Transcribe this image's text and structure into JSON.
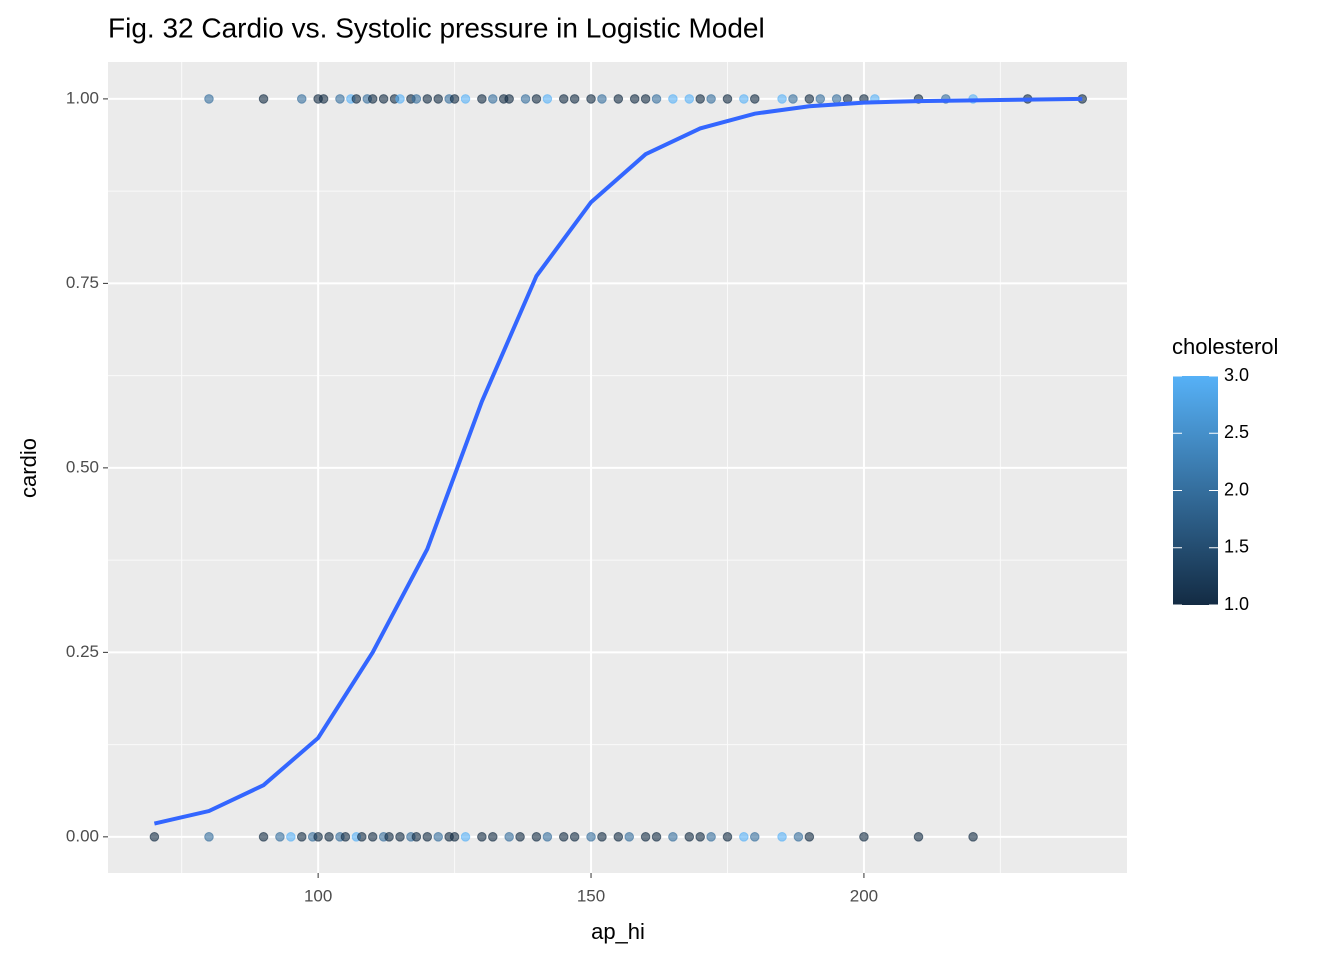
{
  "chart_data": {
    "type": "scatter",
    "title": "Fig. 32 Cardio vs. Systolic pressure in Logistic Model",
    "x_label": "ap_hi",
    "y_label": "cardio",
    "xlim": [
      61.5,
      248.2
    ],
    "ylim": [
      -0.049,
      1.05
    ],
    "xticks": [
      100,
      150,
      200
    ],
    "yticks": [
      {
        "value": 0,
        "label": "0.00"
      },
      {
        "value": 0.25,
        "label": "0.25"
      },
      {
        "value": 0.5,
        "label": "0.50"
      },
      {
        "value": 0.75,
        "label": "0.75"
      },
      {
        "value": 1,
        "label": "1.00"
      }
    ],
    "grid": true,
    "minor_grid": true,
    "x": [
      80,
      90,
      97,
      100,
      101,
      104,
      106,
      107,
      109,
      110,
      112,
      114,
      115,
      117,
      118,
      120,
      122,
      124,
      125,
      127,
      130,
      132,
      134,
      135,
      138,
      140,
      142,
      145,
      147,
      150,
      152,
      155,
      158,
      160,
      162,
      165,
      168,
      170,
      172,
      175,
      178,
      180,
      185,
      187,
      190,
      192,
      195,
      197,
      200,
      202,
      210,
      215,
      220,
      230,
      240,
      70,
      80,
      90,
      93,
      95,
      97,
      99,
      100,
      102,
      104,
      105,
      107,
      108,
      110,
      112,
      113,
      115,
      117,
      118,
      120,
      122,
      124,
      125,
      127,
      130,
      132,
      135,
      137,
      140,
      142,
      145,
      147,
      150,
      152,
      155,
      157,
      160,
      162,
      165,
      168,
      170,
      172,
      175,
      178,
      180,
      185,
      188,
      190,
      200,
      210,
      220
    ],
    "values": [
      1,
      1,
      1,
      1,
      1,
      1,
      1,
      1,
      1,
      1,
      1,
      1,
      1,
      1,
      1,
      1,
      1,
      1,
      1,
      1,
      1,
      1,
      1,
      1,
      1,
      1,
      1,
      1,
      1,
      1,
      1,
      1,
      1,
      1,
      1,
      1,
      1,
      1,
      1,
      1,
      1,
      1,
      1,
      1,
      1,
      1,
      1,
      1,
      1,
      1,
      1,
      1,
      1,
      1,
      1,
      0,
      0,
      0,
      0,
      0,
      0,
      0,
      0,
      0,
      0,
      0,
      0,
      0,
      0,
      0,
      0,
      0,
      0,
      0,
      0,
      0,
      0,
      0,
      0,
      0,
      0,
      0,
      0,
      0,
      0,
      0,
      0,
      0,
      0,
      0,
      0,
      0,
      0,
      0,
      0,
      0,
      0,
      0,
      0,
      0,
      0,
      0,
      0,
      0,
      0,
      0
    ],
    "cholesterol": [
      2,
      1,
      2,
      1,
      1,
      2,
      3,
      1,
      2,
      1,
      1,
      1,
      3,
      1,
      2,
      1,
      1,
      2,
      1,
      3,
      1,
      2,
      1,
      1,
      2,
      1,
      3,
      1,
      1,
      1,
      2,
      1,
      1,
      1,
      2,
      3,
      3,
      1,
      2,
      1,
      3,
      1,
      3,
      2,
      1,
      2,
      2,
      1,
      1,
      3,
      1,
      2,
      3,
      1,
      1,
      1,
      2,
      1,
      2,
      3,
      1,
      2,
      1,
      1,
      2,
      1,
      3,
      1,
      1,
      2,
      1,
      1,
      2,
      1,
      1,
      2,
      1,
      1,
      3,
      1,
      1,
      2,
      1,
      1,
      2,
      1,
      1,
      2,
      1,
      1,
      2,
      1,
      1,
      2,
      1,
      1,
      2,
      1,
      3,
      2,
      3,
      2,
      1,
      1,
      1,
      1
    ],
    "point_alpha": 0.6,
    "color_legend": {
      "title": "cholesterol",
      "lim": [
        1,
        3
      ],
      "low": "#132B43",
      "high": "#56B1F7",
      "ticks": [
        {
          "value": 1,
          "label": "1.0"
        },
        {
          "value": 1.5,
          "label": "1.5"
        },
        {
          "value": 2,
          "label": "2.0"
        },
        {
          "value": 2.5,
          "label": "2.5"
        },
        {
          "value": 3,
          "label": "3.0"
        }
      ]
    },
    "curve": {
      "type": "line",
      "color": "#3366FF",
      "x": [
        70,
        80,
        90,
        100,
        110,
        120,
        130,
        140,
        150,
        160,
        170,
        180,
        190,
        200,
        210,
        220,
        230,
        240
      ],
      "values": [
        0.018,
        0.035,
        0.07,
        0.134,
        0.25,
        0.39,
        0.59,
        0.76,
        0.86,
        0.925,
        0.96,
        0.98,
        0.99,
        0.995,
        0.997,
        0.998,
        0.999,
        1.0
      ]
    }
  }
}
